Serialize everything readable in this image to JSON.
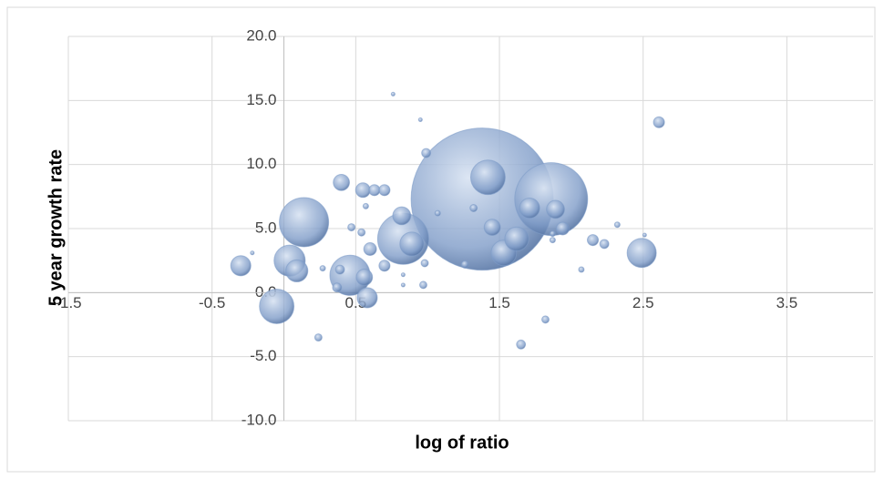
{
  "chart_data": {
    "type": "bubble",
    "x_label": "log of ratio",
    "y_label": "5 year growth rate",
    "x": [
      1.38,
      1.86,
      0.14,
      0.83,
      1.42,
      0.46,
      -0.05,
      0.04,
      2.49,
      1.53,
      1.62,
      0.89,
      -0.3,
      0.09,
      0.58,
      1.71,
      1.89,
      0.82,
      1.45,
      0.4,
      0.56,
      0.6,
      1.94,
      0.55,
      0.63,
      0.7,
      0.7,
      0.37,
      0.39,
      0.99,
      2.61,
      2.15,
      2.23,
      1.65,
      1.82,
      0.24,
      0.47,
      0.54,
      0.98,
      0.97,
      2.07,
      2.32,
      1.32,
      1.07,
      0.57,
      0.95,
      0.76,
      1.26,
      1.87,
      1.87,
      -0.22,
      0.83,
      0.83,
      2.51,
      0.27
    ],
    "y": [
      7.3,
      7.3,
      5.5,
      4.2,
      9.0,
      1.35,
      -1.07,
      2.5,
      3.1,
      3.1,
      4.2,
      3.8,
      2.1,
      1.7,
      -0.4,
      6.6,
      6.5,
      6.0,
      5.1,
      8.6,
      1.2,
      3.4,
      5.0,
      8.0,
      8.0,
      8.0,
      2.1,
      0.4,
      1.8,
      10.9,
      13.3,
      4.1,
      3.8,
      -4.05,
      -2.1,
      -3.5,
      5.1,
      4.7,
      2.3,
      0.6,
      1.8,
      5.3,
      6.6,
      6.2,
      6.75,
      13.5,
      15.5,
      2.2,
      4.1,
      4.6,
      3.1,
      1.4,
      0.6,
      4.5,
      1.9
    ],
    "size": [
      100,
      26.3,
      12,
      12.9,
      5.9,
      8,
      5.9,
      4.8,
      4.2,
      3.2,
      2.8,
      2.8,
      2,
      2.4,
      2,
      2,
      1.6,
      1.6,
      1.3,
      1.3,
      1.3,
      0.8,
      0.8,
      1.05,
      0.6,
      0.6,
      0.6,
      0.4,
      0.4,
      0.4,
      0.6,
      0.6,
      0.4,
      0.4,
      0.26,
      0.26,
      0.26,
      0.26,
      0.26,
      0.26,
      0.15,
      0.15,
      0.26,
      0.15,
      0.15,
      0.07,
      0.07,
      0.26,
      0.15,
      0.15,
      0.07,
      0.07,
      0.07,
      0.07,
      0.15
    ],
    "color": "#7f9cc8",
    "xlim": [
      -1.5,
      4.1
    ],
    "xticks": [
      -1.5,
      -0.5,
      0.5,
      1.5,
      2.5,
      3.5
    ],
    "ylim": [
      -10,
      20
    ],
    "yticks": [
      {
        "value": -10,
        "label": "-10.0"
      },
      {
        "value": -5,
        "label": "-5.0"
      },
      {
        "value": 0,
        "label": "0.0"
      },
      {
        "value": 5,
        "label": "5.0"
      },
      {
        "value": 10,
        "label": "10.0"
      },
      {
        "value": 15,
        "label": "15.0"
      },
      {
        "value": 20,
        "label": "20.0"
      }
    ],
    "grid": true
  }
}
